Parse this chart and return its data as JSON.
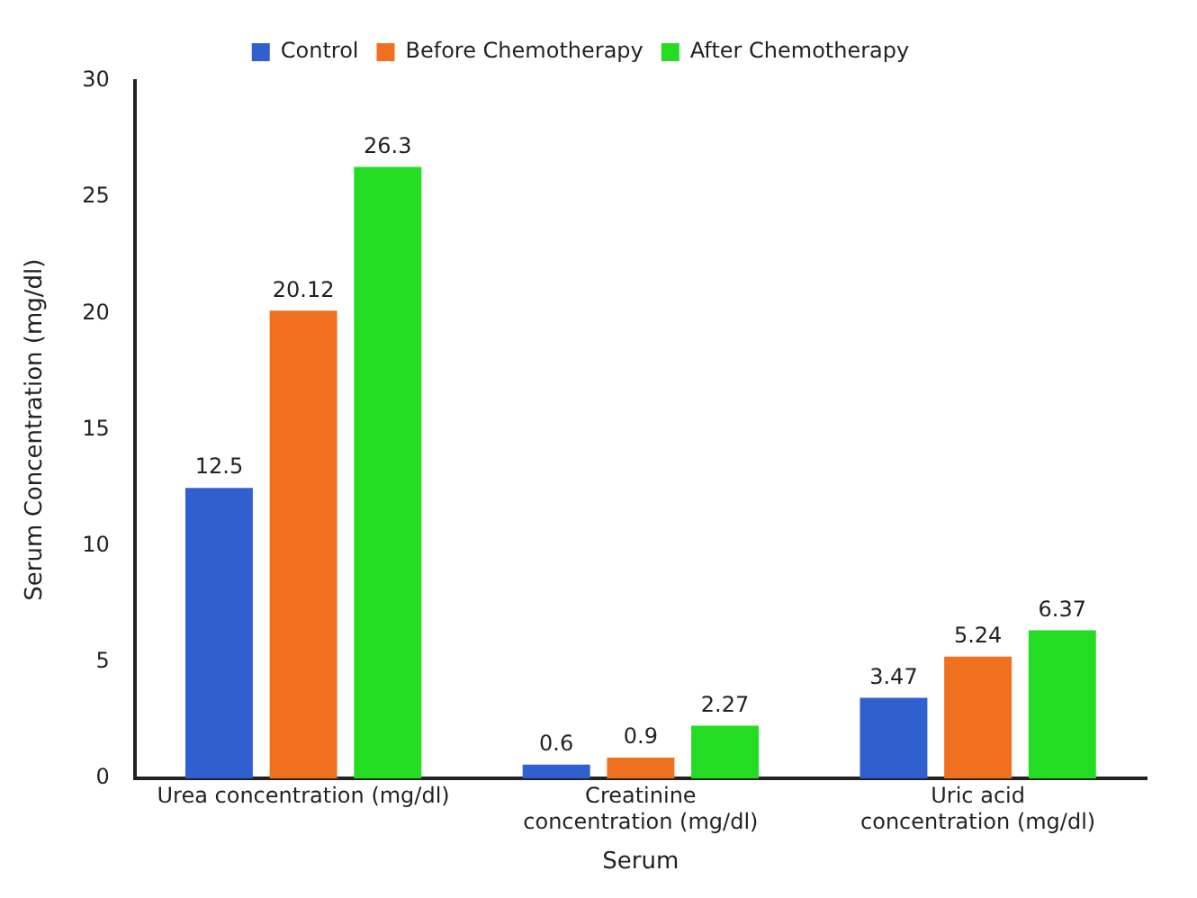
{
  "chart_data": {
    "type": "bar",
    "xlabel": "Serum",
    "ylabel": "Serum Concentration (mg/dl)",
    "categories": [
      "Urea concentration (mg/dl)",
      "Creatinine concentration (mg/dl)",
      "Uric acid concentration (mg/dl)"
    ],
    "series": [
      {
        "name": "Control",
        "color": "#3060d0",
        "values": [
          12.5,
          0.6,
          3.47
        ]
      },
      {
        "name": "Before Chemotherapy",
        "color": "#f07020",
        "values": [
          20.12,
          0.9,
          5.24
        ]
      },
      {
        "name": "After Chemotherapy",
        "color": "#22dd22",
        "values": [
          26.3,
          2.27,
          6.37
        ]
      }
    ],
    "ylim": [
      0,
      30
    ],
    "yticks": [
      0,
      5,
      10,
      15,
      20,
      25,
      30
    ],
    "grid": false,
    "legend": "top",
    "data_labels": true
  }
}
